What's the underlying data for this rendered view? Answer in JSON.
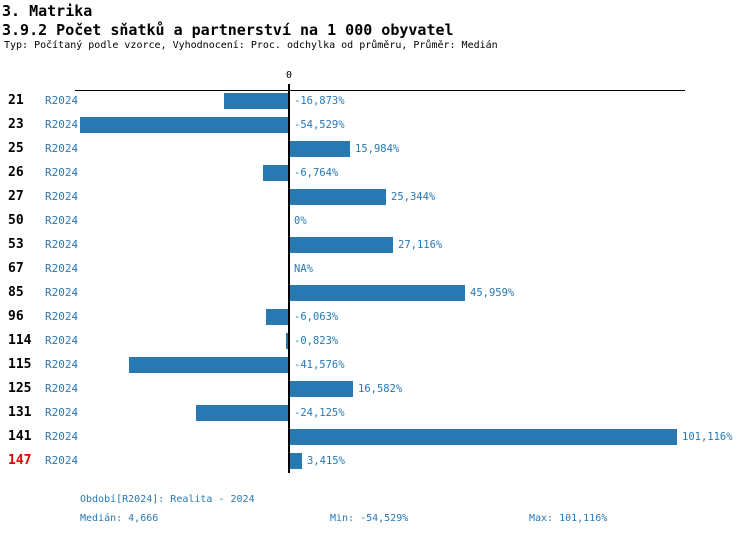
{
  "header": {
    "title": "3. Matrika",
    "subtitle": "3.9.2 Počet sňatků a partnerství na 1 000 obyvatel",
    "meta": "Typ: Počítaný podle vzorce, Vyhodnocení: Proc. odchylka od průměru, Průměr: Medián"
  },
  "chart_data": {
    "type": "bar",
    "orientation": "horizontal",
    "title": "3.9.2 Počet sňatků a partnerství na 1 000 obyvatel",
    "xlabel": "Proc. odchylka od průměru (%)",
    "ylabel": "",
    "zero_tick_label": "0",
    "xlim": [
      -55.8,
      103.2
    ],
    "grid": false,
    "legend_position": "none",
    "colors": {
      "bar": "#2878b4",
      "value_text": "#2878b4",
      "series_text": "#2878b4",
      "code_default": "#000000",
      "code_highlight": "#e00000",
      "axis": "#000000"
    },
    "series_name": "R2024",
    "categories": [
      "21",
      "23",
      "25",
      "26",
      "27",
      "50",
      "53",
      "67",
      "85",
      "96",
      "114",
      "115",
      "125",
      "131",
      "141",
      "147"
    ],
    "values": [
      -16.873,
      -54.529,
      15.984,
      -6.764,
      25.344,
      0,
      27.116,
      null,
      45.959,
      -6.063,
      -0.823,
      -41.576,
      16.582,
      -24.125,
      101.116,
      3.415
    ],
    "rows": [
      {
        "code": "21",
        "series": "R2024",
        "value": -16.873,
        "label": "-16,873%",
        "code_color": "#000000"
      },
      {
        "code": "23",
        "series": "R2024",
        "value": -54.529,
        "label": "-54,529%",
        "code_color": "#000000"
      },
      {
        "code": "25",
        "series": "R2024",
        "value": 15.984,
        "label": "15,984%",
        "code_color": "#000000"
      },
      {
        "code": "26",
        "series": "R2024",
        "value": -6.764,
        "label": "-6,764%",
        "code_color": "#000000"
      },
      {
        "code": "27",
        "series": "R2024",
        "value": 25.344,
        "label": "25,344%",
        "code_color": "#000000"
      },
      {
        "code": "50",
        "series": "R2024",
        "value": 0,
        "label": "0%",
        "code_color": "#000000"
      },
      {
        "code": "53",
        "series": "R2024",
        "value": 27.116,
        "label": "27,116%",
        "code_color": "#000000"
      },
      {
        "code": "67",
        "series": "R2024",
        "value": null,
        "label": "NA%",
        "code_color": "#000000"
      },
      {
        "code": "85",
        "series": "R2024",
        "value": 45.959,
        "label": "45,959%",
        "code_color": "#000000"
      },
      {
        "code": "96",
        "series": "R2024",
        "value": -6.063,
        "label": "-6,063%",
        "code_color": "#000000"
      },
      {
        "code": "114",
        "series": "R2024",
        "value": -0.823,
        "label": "-0,823%",
        "code_color": "#000000"
      },
      {
        "code": "115",
        "series": "R2024",
        "value": -41.576,
        "label": "-41,576%",
        "code_color": "#000000"
      },
      {
        "code": "125",
        "series": "R2024",
        "value": 16.582,
        "label": "16,582%",
        "code_color": "#000000"
      },
      {
        "code": "131",
        "series": "R2024",
        "value": -24.125,
        "label": "-24,125%",
        "code_color": "#000000"
      },
      {
        "code": "141",
        "series": "R2024",
        "value": 101.116,
        "label": "101,116%",
        "code_color": "#000000"
      },
      {
        "code": "147",
        "series": "R2024",
        "value": 3.415,
        "label": "3,415%",
        "code_color": "#e00000"
      }
    ]
  },
  "footer": {
    "period": "Období[R2024]: Realita - 2024",
    "median": "Medián: 4,666",
    "min": "Min: -54,529%",
    "max": "Max: 101,116%"
  }
}
